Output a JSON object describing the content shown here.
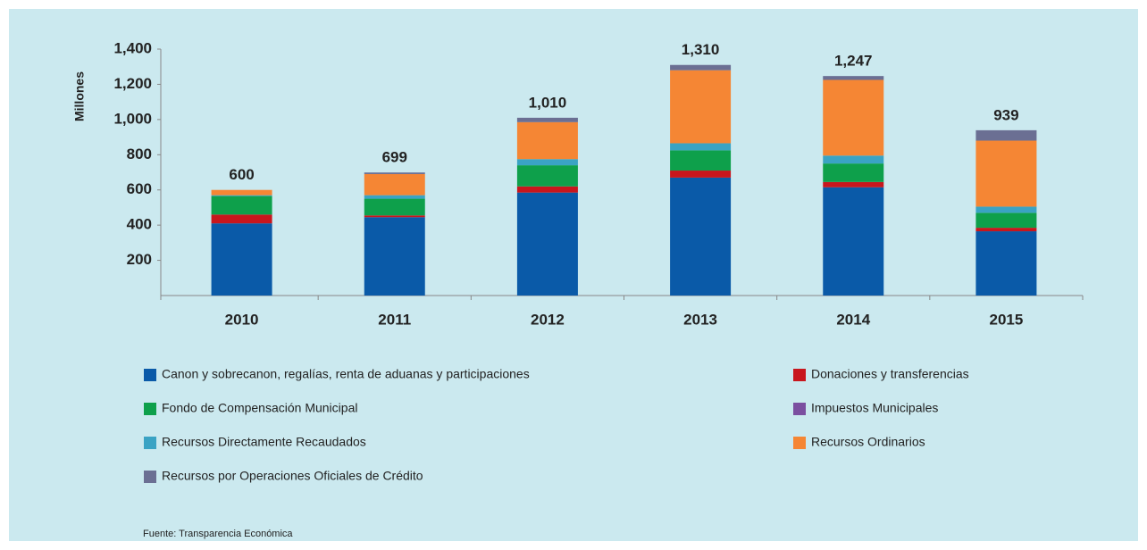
{
  "chart_data": {
    "type": "stacked_bar",
    "categories": [
      "2010",
      "2011",
      "2012",
      "2013",
      "2014",
      "2015"
    ],
    "y_label": "Millones",
    "series": [
      {
        "name": "Canon y sobrecanon, regalías, renta de aduanas y participaciones",
        "color": "#0a5aa8",
        "values": [
          410,
          445,
          585,
          670,
          615,
          365
        ]
      },
      {
        "name": "Donaciones y transferencias",
        "color": "#c8161d",
        "values": [
          50,
          10,
          35,
          40,
          30,
          20
        ]
      },
      {
        "name": "Fondo de Compensación Municipal",
        "color": "#0ea04b",
        "values": [
          105,
          95,
          120,
          115,
          105,
          85
        ]
      },
      {
        "name": "Impuestos Municipales",
        "color": "#7b4fa0",
        "values": [
          0,
          0,
          0,
          0,
          0,
          0
        ]
      },
      {
        "name": "Recursos Directamente Recaudados",
        "color": "#3aa3c4",
        "values": [
          5,
          20,
          35,
          40,
          45,
          35
        ]
      },
      {
        "name": "Recursos Ordinarios",
        "color": "#f58634",
        "values": [
          30,
          120,
          210,
          415,
          430,
          375
        ]
      },
      {
        "name": "Recursos por Operaciones Oficiales de Crédito",
        "color": "#6b6f93",
        "values": [
          0,
          9,
          25,
          30,
          22,
          59
        ]
      }
    ],
    "totals": [
      600,
      699,
      1010,
      1310,
      1247,
      939
    ],
    "total_labels": [
      "600",
      "699",
      "1,010",
      "1,310",
      "1,247",
      "939"
    ],
    "ylim": [
      0,
      1400
    ],
    "yticks": [
      200,
      400,
      600,
      800,
      {
        "value": 1000,
        "label": "1,000"
      },
      {
        "value": 1200,
        "label": "1,200"
      },
      {
        "value": 1400,
        "label": "1,400"
      }
    ],
    "source": "Fuente: Transparencia Económica"
  }
}
